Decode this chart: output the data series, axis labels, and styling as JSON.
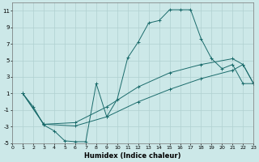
{
  "xlabel": "Humidex (Indice chaleur)",
  "bg_color": "#cce8e8",
  "grid_color": "#b0d0d0",
  "line_color": "#1a6b6b",
  "xlim": [
    0,
    23
  ],
  "ylim": [
    -5,
    12
  ],
  "xticks": [
    0,
    1,
    2,
    3,
    4,
    5,
    6,
    7,
    8,
    9,
    10,
    11,
    12,
    13,
    14,
    15,
    16,
    17,
    18,
    19,
    20,
    21,
    22,
    23
  ],
  "yticks": [
    -5,
    -3,
    -1,
    1,
    3,
    5,
    7,
    9,
    11
  ],
  "line1_x": [
    1,
    2,
    3,
    4,
    5,
    6,
    7,
    8,
    9,
    10,
    11,
    12,
    13,
    14,
    15,
    16,
    17,
    18,
    19,
    20,
    21,
    22,
    23
  ],
  "line1_y": [
    1,
    -0.6,
    -2.8,
    -3.5,
    -4.7,
    -4.8,
    -4.8,
    2.2,
    -1.8,
    0.3,
    5.3,
    7.2,
    9.5,
    9.8,
    11.1,
    11.1,
    11.1,
    7.6,
    5.2,
    4.0,
    4.5,
    2.2,
    2.2
  ],
  "line2_x": [
    1,
    3,
    6,
    9,
    12,
    15,
    18,
    21,
    22,
    23
  ],
  "line2_y": [
    1,
    -2.7,
    -2.5,
    -0.6,
    1.8,
    3.5,
    4.5,
    5.2,
    4.5,
    2.2
  ],
  "line3_x": [
    1,
    3,
    6,
    9,
    12,
    15,
    18,
    21,
    22,
    23
  ],
  "line3_y": [
    1,
    -2.7,
    -2.9,
    -1.8,
    0.0,
    1.5,
    2.8,
    3.8,
    4.5,
    2.2
  ]
}
